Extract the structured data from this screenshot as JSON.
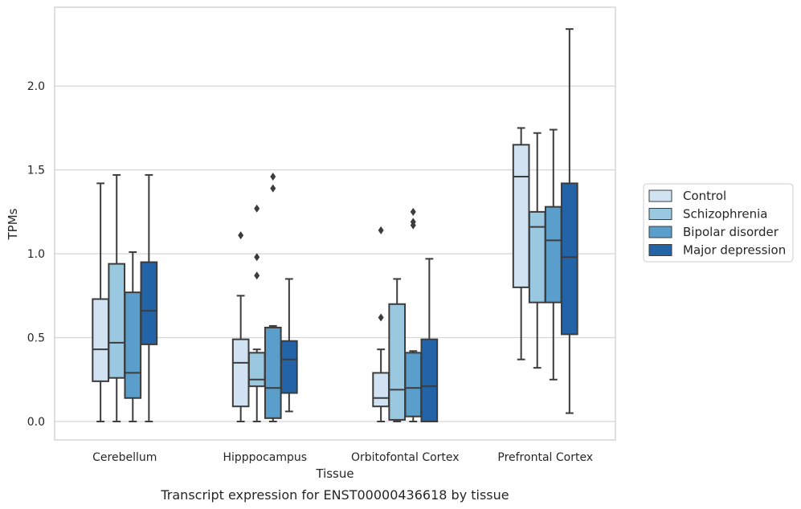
{
  "caption": "Transcript expression for ENST00000436618 by tissue",
  "chart_data": {
    "type": "box",
    "xlabel": "Tissue",
    "ylabel": "TPMs",
    "ylim": [
      -0.11,
      2.47
    ],
    "yticks": [
      0.0,
      0.5,
      1.0,
      1.5,
      2.0
    ],
    "ytick_labels": [
      "0.0",
      "0.5",
      "1.0",
      "1.5",
      "2.0"
    ],
    "grid": "horizontal",
    "legend_position": "right",
    "categories": [
      "Cerebellum",
      "Hipppocampus",
      "Orbitofontal Cortex",
      "Prefrontal Cortex"
    ],
    "series": [
      {
        "name": "Control",
        "color": "#d1e2f2",
        "boxes": [
          {
            "whislo": 0.0,
            "q1": 0.24,
            "median": 0.43,
            "q3": 0.73,
            "whishi": 1.42,
            "fliers": []
          },
          {
            "whislo": 0.0,
            "q1": 0.09,
            "median": 0.35,
            "q3": 0.49,
            "whishi": 0.75,
            "fliers": [
              1.11
            ]
          },
          {
            "whislo": 0.0,
            "q1": 0.09,
            "median": 0.14,
            "q3": 0.29,
            "whishi": 0.43,
            "fliers": [
              0.62,
              1.14
            ]
          },
          {
            "whislo": 0.37,
            "q1": 0.8,
            "median": 1.46,
            "q3": 1.65,
            "whishi": 1.75,
            "fliers": []
          }
        ]
      },
      {
        "name": "Schizophrenia",
        "color": "#9ac8e0",
        "boxes": [
          {
            "whislo": 0.0,
            "q1": 0.26,
            "median": 0.47,
            "q3": 0.94,
            "whishi": 1.47,
            "fliers": []
          },
          {
            "whislo": 0.0,
            "q1": 0.21,
            "median": 0.25,
            "q3": 0.41,
            "whishi": 0.43,
            "fliers": [
              0.87,
              0.98,
              1.27
            ]
          },
          {
            "whislo": 0.0,
            "q1": 0.01,
            "median": 0.19,
            "q3": 0.7,
            "whishi": 0.85,
            "fliers": []
          },
          {
            "whislo": 0.32,
            "q1": 0.71,
            "median": 1.16,
            "q3": 1.25,
            "whishi": 1.72,
            "fliers": []
          }
        ]
      },
      {
        "name": "Bipolar disorder",
        "color": "#5a9ecb",
        "boxes": [
          {
            "whislo": 0.0,
            "q1": 0.14,
            "median": 0.29,
            "q3": 0.77,
            "whishi": 1.01,
            "fliers": []
          },
          {
            "whislo": 0.0,
            "q1": 0.02,
            "median": 0.2,
            "q3": 0.56,
            "whishi": 0.57,
            "fliers": [
              1.39,
              1.46
            ]
          },
          {
            "whislo": 0.0,
            "q1": 0.03,
            "median": 0.2,
            "q3": 0.41,
            "whishi": 0.42,
            "fliers": [
              1.17,
              1.19,
              1.25
            ]
          },
          {
            "whislo": 0.25,
            "q1": 0.71,
            "median": 1.08,
            "q3": 1.28,
            "whishi": 1.74,
            "fliers": []
          }
        ]
      },
      {
        "name": "Major depression",
        "color": "#2363a7",
        "boxes": [
          {
            "whislo": 0.0,
            "q1": 0.46,
            "median": 0.66,
            "q3": 0.95,
            "whishi": 1.47,
            "fliers": []
          },
          {
            "whislo": 0.06,
            "q1": 0.17,
            "median": 0.37,
            "q3": 0.48,
            "whishi": 0.85,
            "fliers": []
          },
          {
            "whislo": 0.0,
            "q1": 0.0,
            "median": 0.21,
            "q3": 0.49,
            "whishi": 0.97,
            "fliers": []
          },
          {
            "whislo": 0.05,
            "q1": 0.52,
            "median": 0.98,
            "q3": 1.42,
            "whishi": 2.34,
            "fliers": []
          }
        ]
      }
    ]
  }
}
